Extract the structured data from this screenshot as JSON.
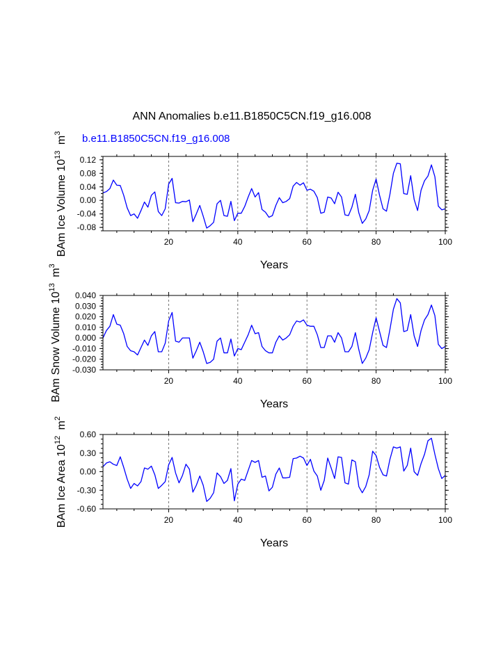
{
  "figure": {
    "title": "ANN Anomalies b.e11.B1850C5CN.f19_g16.008",
    "legend_label": "b.e11.B1850C5CN.f19_g16.008",
    "series_color": "#0000ff"
  },
  "chart_data": [
    {
      "type": "line",
      "title": "",
      "xlabel": "Years",
      "ylabel": "BAm Ice Volume",
      "ylabel_power": "13",
      "ylabel_unit": "m",
      "ylabel_unit_power": "3",
      "xlim": [
        1,
        100
      ],
      "ylim": [
        -0.09,
        0.13
      ],
      "x_ticks": [
        20,
        40,
        60,
        80,
        100
      ],
      "x_tick_labels": [
        "20",
        "40",
        "60",
        "80",
        "100"
      ],
      "y_ticks": [
        -0.08,
        -0.04,
        0.0,
        0.04,
        0.08,
        0.12
      ],
      "y_tick_labels": [
        "-0.08",
        "-0.04",
        "0.00",
        "0.04",
        "0.08",
        "0.12"
      ],
      "grid": "vertical dashed at x ticks",
      "series": [
        {
          "name": "b.e11.B1850C5CN.f19_g16.008",
          "values": [
            0.022,
            0.026,
            0.035,
            0.06,
            0.045,
            0.044,
            0.015,
            -0.022,
            -0.045,
            -0.04,
            -0.053,
            -0.03,
            -0.005,
            -0.02,
            0.015,
            0.025,
            -0.033,
            -0.045,
            -0.025,
            0.048,
            0.065,
            -0.007,
            -0.008,
            -0.003,
            -0.004,
            0.001,
            -0.063,
            -0.04,
            -0.015,
            -0.047,
            -0.082,
            -0.075,
            -0.065,
            -0.01,
            0.0,
            -0.045,
            -0.047,
            -0.003,
            -0.06,
            -0.038,
            -0.038,
            -0.018,
            0.01,
            0.035,
            0.01,
            0.023,
            -0.027,
            -0.035,
            -0.05,
            -0.045,
            -0.015,
            0.008,
            -0.007,
            -0.003,
            0.005,
            0.042,
            0.053,
            0.045,
            0.052,
            0.03,
            0.033,
            0.027,
            0.008,
            -0.038,
            -0.035,
            0.01,
            0.007,
            -0.01,
            0.024,
            0.01,
            -0.043,
            -0.045,
            -0.02,
            0.018,
            -0.037,
            -0.068,
            -0.055,
            -0.03,
            0.03,
            0.063,
            0.015,
            -0.025,
            -0.032,
            0.018,
            0.08,
            0.11,
            0.108,
            0.02,
            0.018,
            0.073,
            0.003,
            -0.03,
            0.03,
            0.058,
            0.072,
            0.105,
            0.07,
            -0.017,
            -0.028,
            -0.025
          ]
        }
      ]
    },
    {
      "type": "line",
      "title": "",
      "xlabel": "Years",
      "ylabel": "BAm Snow Volume",
      "ylabel_power": "13",
      "ylabel_unit": "m",
      "ylabel_unit_power": "3",
      "xlim": [
        1,
        100
      ],
      "ylim": [
        -0.03,
        0.04
      ],
      "x_ticks": [
        20,
        40,
        60,
        80,
        100
      ],
      "x_tick_labels": [
        "20",
        "40",
        "60",
        "80",
        "100"
      ],
      "y_ticks": [
        -0.03,
        -0.02,
        -0.01,
        0.0,
        0.01,
        0.02,
        0.03,
        0.04
      ],
      "y_tick_labels": [
        "-0.030",
        "-0.020",
        "-0.010",
        "0.000",
        "0.010",
        "0.020",
        "0.030",
        "0.040"
      ],
      "grid": "vertical dashed at x ticks",
      "series": [
        {
          "name": "b.e11.B1850C5CN.f19_g16.008",
          "values": [
            0.0,
            0.007,
            0.011,
            0.022,
            0.013,
            0.012,
            0.004,
            -0.008,
            -0.012,
            -0.013,
            -0.016,
            -0.009,
            -0.002,
            -0.007,
            0.002,
            0.006,
            -0.013,
            -0.013,
            -0.005,
            0.016,
            0.024,
            -0.003,
            -0.004,
            0.0,
            0.0,
            0.0,
            -0.019,
            -0.012,
            -0.004,
            -0.013,
            -0.024,
            -0.023,
            -0.02,
            -0.003,
            0.0,
            -0.014,
            -0.014,
            -0.001,
            -0.017,
            -0.01,
            -0.011,
            -0.004,
            0.003,
            0.012,
            0.004,
            0.005,
            -0.008,
            -0.012,
            -0.014,
            -0.014,
            -0.004,
            0.002,
            -0.002,
            0.0,
            0.003,
            0.011,
            0.016,
            0.015,
            0.017,
            0.012,
            0.011,
            0.011,
            0.003,
            -0.009,
            -0.009,
            0.002,
            0.002,
            -0.004,
            0.005,
            0.0,
            -0.013,
            -0.013,
            -0.008,
            0.005,
            -0.011,
            -0.024,
            -0.019,
            -0.011,
            0.005,
            0.019,
            0.006,
            -0.007,
            -0.009,
            0.008,
            0.027,
            0.037,
            0.033,
            0.006,
            0.007,
            0.022,
            0.002,
            -0.008,
            0.007,
            0.017,
            0.022,
            0.031,
            0.021,
            -0.006,
            -0.01,
            -0.008
          ]
        }
      ]
    },
    {
      "type": "line",
      "title": "",
      "xlabel": "Years",
      "ylabel": "BAm Ice Area",
      "ylabel_power": "12",
      "ylabel_unit": "m",
      "ylabel_unit_power": "2",
      "xlim": [
        1,
        100
      ],
      "ylim": [
        -0.6,
        0.6
      ],
      "x_ticks": [
        20,
        40,
        60,
        80,
        100
      ],
      "x_tick_labels": [
        "20",
        "40",
        "60",
        "80",
        "100"
      ],
      "y_ticks": [
        -0.6,
        -0.3,
        0.0,
        0.3,
        0.6
      ],
      "y_tick_labels": [
        "-0.60",
        "-0.30",
        "0.00",
        "0.30",
        "0.60"
      ],
      "grid": "vertical dashed at x ticks",
      "series": [
        {
          "name": "b.e11.B1850C5CN.f19_g16.008",
          "values": [
            0.08,
            0.14,
            0.16,
            0.12,
            0.1,
            0.24,
            0.07,
            -0.12,
            -0.27,
            -0.19,
            -0.23,
            -0.16,
            0.06,
            0.04,
            0.09,
            -0.05,
            -0.27,
            -0.22,
            -0.16,
            0.11,
            0.23,
            -0.02,
            -0.18,
            -0.06,
            0.12,
            0.04,
            -0.33,
            -0.22,
            -0.07,
            -0.22,
            -0.48,
            -0.43,
            -0.34,
            -0.02,
            -0.08,
            -0.19,
            -0.14,
            0.05,
            -0.47,
            -0.2,
            -0.12,
            -0.14,
            0.02,
            0.18,
            0.15,
            0.18,
            -0.09,
            -0.07,
            -0.31,
            -0.25,
            -0.04,
            0.06,
            -0.1,
            -0.1,
            -0.09,
            0.21,
            0.22,
            0.25,
            0.22,
            0.1,
            0.2,
            0.01,
            -0.07,
            -0.3,
            -0.14,
            0.22,
            0.06,
            -0.11,
            0.24,
            0.23,
            -0.18,
            -0.2,
            0.19,
            0.16,
            -0.24,
            -0.34,
            -0.24,
            -0.05,
            0.33,
            0.26,
            0.07,
            -0.05,
            -0.07,
            0.2,
            0.4,
            0.38,
            0.4,
            0.01,
            0.1,
            0.38,
            0.0,
            -0.06,
            0.13,
            0.28,
            0.5,
            0.54,
            0.28,
            0.05,
            -0.11,
            -0.06
          ]
        }
      ]
    }
  ]
}
